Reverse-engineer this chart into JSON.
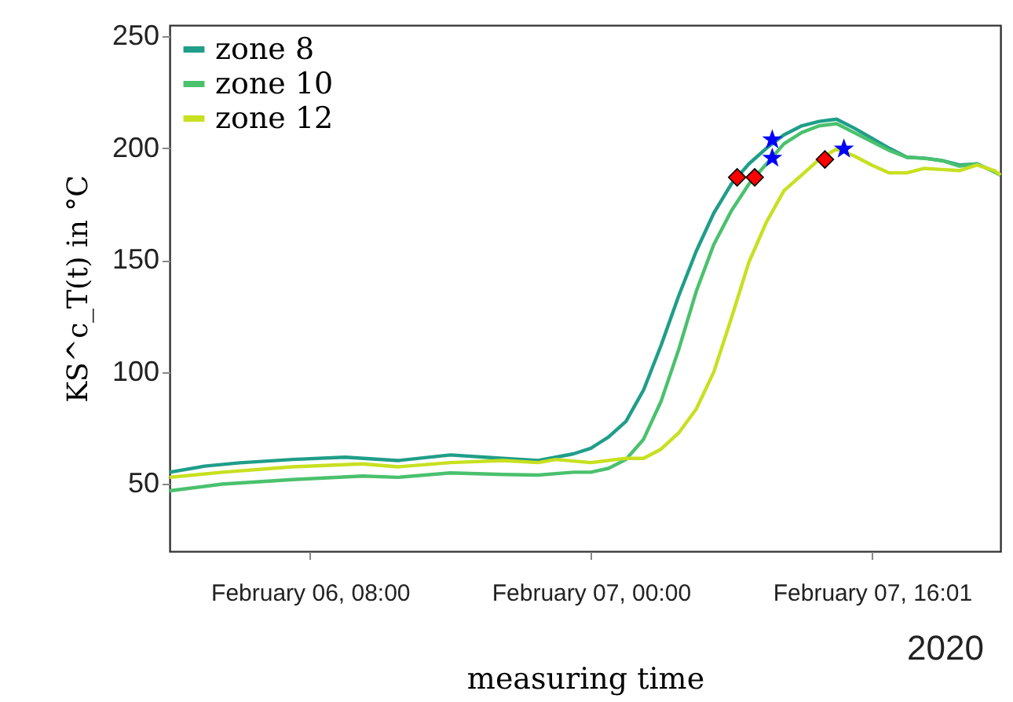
{
  "chart_data": {
    "type": "line",
    "xlabel": "measuring time",
    "ylabel": "KS^c_T(t) in °C",
    "annotations": [
      "2020"
    ],
    "xlim": [
      "2020-02-06T00:00",
      "2020-02-07T23:20"
    ],
    "xticks": [
      {
        "value": "2020-02-06T08:00",
        "label": "February 06, 08:00"
      },
      {
        "value": "2020-02-07T00:00",
        "label": "February 07, 00:00"
      },
      {
        "value": "2020-02-07T16:01",
        "label": "February 07, 16:01"
      }
    ],
    "ylim": [
      20,
      255
    ],
    "yticks": [
      50,
      100,
      150,
      200,
      250
    ],
    "grid": false,
    "legend": "top left",
    "marker": "none",
    "line_style": "solid",
    "series": [
      {
        "name": "zone 8",
        "color": "#1f9e89",
        "x": [
          "2020-02-06T00:00",
          "2020-02-06T02:00",
          "2020-02-06T04:00",
          "2020-02-06T07:00",
          "2020-02-06T10:00",
          "2020-02-06T13:00",
          "2020-02-06T16:00",
          "2020-02-06T19:00",
          "2020-02-06T21:00",
          "2020-02-06T23:00",
          "2020-02-07T00:00",
          "2020-02-07T01:00",
          "2020-02-07T02:00",
          "2020-02-07T03:00",
          "2020-02-07T04:00",
          "2020-02-07T05:00",
          "2020-02-07T06:00",
          "2020-02-07T07:00",
          "2020-02-07T08:00",
          "2020-02-07T09:00",
          "2020-02-07T10:00",
          "2020-02-07T11:00",
          "2020-02-07T12:00",
          "2020-02-07T13:00",
          "2020-02-07T14:00",
          "2020-02-07T15:00",
          "2020-02-07T16:00",
          "2020-02-07T17:00",
          "2020-02-07T18:00",
          "2020-02-07T19:00",
          "2020-02-07T20:00",
          "2020-02-07T21:00",
          "2020-02-07T22:00",
          "2020-02-07T23:00",
          "2020-02-07T23:20"
        ],
        "values": [
          55.3,
          58,
          59.5,
          61,
          62,
          60.5,
          63,
          61.5,
          60.5,
          63.5,
          66,
          71,
          78,
          92,
          112,
          134,
          154,
          171,
          184,
          193,
          200,
          206,
          210,
          212,
          213,
          209,
          204.5,
          200,
          196,
          195.6,
          194.5,
          192.5,
          193,
          189.5,
          188
        ]
      },
      {
        "name": "zone 10",
        "color": "#4ac16d",
        "x": [
          "2020-02-06T00:00",
          "2020-02-06T03:00",
          "2020-02-06T07:00",
          "2020-02-06T11:00",
          "2020-02-06T13:00",
          "2020-02-06T16:00",
          "2020-02-06T19:00",
          "2020-02-06T21:00",
          "2020-02-06T23:00",
          "2020-02-07T00:00",
          "2020-02-07T01:00",
          "2020-02-07T02:00",
          "2020-02-07T03:00",
          "2020-02-07T04:00",
          "2020-02-07T05:00",
          "2020-02-07T06:00",
          "2020-02-07T07:00",
          "2020-02-07T08:00",
          "2020-02-07T09:00",
          "2020-02-07T10:00",
          "2020-02-07T11:00",
          "2020-02-07T12:00",
          "2020-02-07T13:00",
          "2020-02-07T14:00",
          "2020-02-07T15:00",
          "2020-02-07T16:00",
          "2020-02-07T17:00",
          "2020-02-07T18:00",
          "2020-02-07T19:00",
          "2020-02-07T20:00",
          "2020-02-07T21:00",
          "2020-02-07T22:00",
          "2020-02-07T23:00",
          "2020-02-07T23:20"
        ],
        "values": [
          47,
          50,
          52,
          53.6,
          53,
          55,
          54.3,
          54,
          55.3,
          55.3,
          57,
          61,
          70,
          87,
          110,
          136,
          157,
          172,
          184,
          193,
          202,
          207,
          210,
          211,
          207,
          203,
          199,
          196,
          195.5,
          194.5,
          192,
          193,
          189.5,
          188
        ]
      },
      {
        "name": "zone 12",
        "color": "#c8e020",
        "x": [
          "2020-02-06T00:00",
          "2020-02-06T03:00",
          "2020-02-06T07:00",
          "2020-02-06T11:00",
          "2020-02-06T13:00",
          "2020-02-06T16:00",
          "2020-02-06T19:00",
          "2020-02-06T21:00",
          "2020-02-06T22:00",
          "2020-02-07T00:00",
          "2020-02-07T02:00",
          "2020-02-07T03:00",
          "2020-02-07T04:00",
          "2020-02-07T05:00",
          "2020-02-07T06:00",
          "2020-02-07T07:00",
          "2020-02-07T08:00",
          "2020-02-07T09:00",
          "2020-02-07T10:00",
          "2020-02-07T11:00",
          "2020-02-07T12:00",
          "2020-02-07T13:00",
          "2020-02-07T14:00",
          "2020-02-07T15:00",
          "2020-02-07T16:00",
          "2020-02-07T17:00",
          "2020-02-07T18:00",
          "2020-02-07T19:00",
          "2020-02-07T20:00",
          "2020-02-07T21:00",
          "2020-02-07T22:00",
          "2020-02-07T23:00",
          "2020-02-07T23:20"
        ],
        "values": [
          53,
          55.3,
          57.7,
          59,
          57.7,
          59.6,
          60.5,
          59.6,
          61,
          59.6,
          61.5,
          61.5,
          65.6,
          72.8,
          83.5,
          100,
          124,
          149,
          167,
          181,
          188,
          195,
          199.7,
          196.6,
          192.5,
          189,
          189,
          191,
          190.5,
          190,
          192.5,
          190,
          188
        ]
      },
      {
        "type": "scatter",
        "marker": "diamond",
        "color": "#ff0000",
        "x": [
          "2020-02-07T08:20",
          "2020-02-07T09:20",
          "2020-02-07T13:20"
        ],
        "values": [
          187,
          187,
          195
        ]
      },
      {
        "type": "scatter",
        "marker": "star",
        "color": "#0000ff",
        "x": [
          "2020-02-07T10:20",
          "2020-02-07T10:20",
          "2020-02-07T14:25"
        ],
        "values": [
          203.8,
          195.6,
          199.7
        ]
      }
    ]
  }
}
